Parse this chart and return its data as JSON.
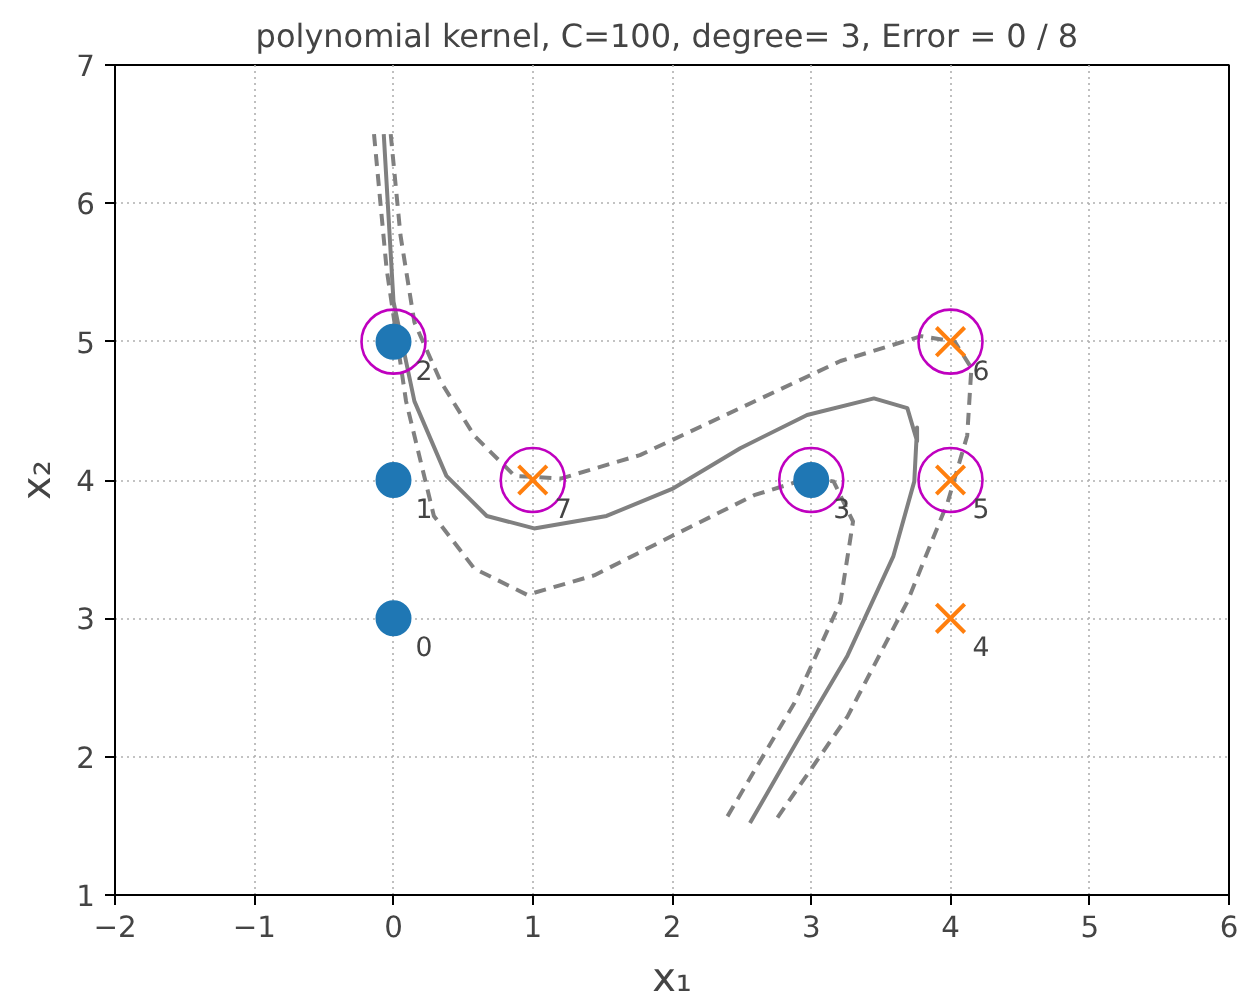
{
  "chart_data": {
    "type": "scatter",
    "title": "polynomial kernel, C=100, degree= 3,  Error = 0 / 8",
    "xlabel": "x₁",
    "ylabel": "x₂",
    "xlim": [
      -2,
      6
    ],
    "ylim": [
      1,
      7
    ],
    "xticks": [
      {
        "value": -2,
        "label": "−2"
      },
      {
        "value": -1,
        "label": "−1"
      },
      0,
      1,
      2,
      3,
      4,
      5,
      6
    ],
    "yticks": [
      1,
      2,
      3,
      4,
      5,
      6,
      7
    ],
    "grid": true,
    "series": [
      {
        "type": "line",
        "color": "#808080",
        "line_style": "solid",
        "x": [
          -0.07,
          0.0,
          0.15,
          0.38,
          0.67,
          1.01,
          1.53,
          2.01,
          2.49,
          2.97,
          3.45,
          3.69,
          3.76,
          3.76,
          3.74,
          3.59,
          3.26,
          2.92,
          2.56
        ],
        "values": [
          6.5,
          5.29,
          4.57,
          4.03,
          3.74,
          3.65,
          3.74,
          3.94,
          4.23,
          4.47,
          4.59,
          4.52,
          4.28,
          4.38,
          3.99,
          3.45,
          2.73,
          2.15,
          1.52
        ]
      },
      {
        "type": "line",
        "color": "#808080",
        "line_style": "dashed",
        "x": [
          -0.14,
          -0.05,
          0.09,
          0.29,
          0.58,
          0.96,
          1.44,
          2.01,
          2.59,
          2.97,
          3.16,
          3.28,
          3.3,
          3.21,
          2.88,
          2.37
        ],
        "values": [
          6.5,
          5.53,
          4.57,
          3.74,
          3.36,
          3.17,
          3.31,
          3.6,
          3.89,
          4.01,
          3.99,
          3.74,
          3.7,
          3.12,
          2.39,
          1.52
        ]
      },
      {
        "type": "line",
        "color": "#808080",
        "line_style": "dashed",
        "x": [
          -0.02,
          0.05,
          0.15,
          0.34,
          0.58,
          0.87,
          1.2,
          1.77,
          2.49,
          3.21,
          3.79,
          4.03,
          4.15,
          4.12,
          3.98,
          3.69,
          3.26,
          2.73
        ],
        "values": [
          6.5,
          5.77,
          5.14,
          4.71,
          4.32,
          4.03,
          4.01,
          4.18,
          4.52,
          4.86,
          5.04,
          5.0,
          4.81,
          4.32,
          3.84,
          3.12,
          2.29,
          1.52
        ]
      },
      {
        "color": "#1f77b4",
        "marker": "circle",
        "x": [
          0,
          0,
          0,
          3
        ],
        "values": [
          3,
          4,
          5,
          4
        ]
      },
      {
        "color": "#ff7f0e",
        "marker": "cross",
        "x": [
          4,
          4,
          4,
          1
        ],
        "values": [
          3,
          4,
          5,
          4
        ]
      },
      {
        "color": "#bf00bf",
        "marker": "circle",
        "x": [
          0,
          3,
          4,
          4,
          1
        ],
        "values": [
          5,
          4,
          4,
          5,
          4
        ]
      }
    ],
    "annotations": [
      {
        "text": "0",
        "x": 0,
        "y": 3
      },
      {
        "text": "1",
        "x": 0,
        "y": 4
      },
      {
        "text": "2",
        "x": 0,
        "y": 5
      },
      {
        "text": "3",
        "x": 3,
        "y": 4
      },
      {
        "text": "4",
        "x": 4,
        "y": 3
      },
      {
        "text": "5",
        "x": 4,
        "y": 4
      },
      {
        "text": "6",
        "x": 4,
        "y": 5
      },
      {
        "text": "7",
        "x": 1,
        "y": 4
      }
    ]
  }
}
